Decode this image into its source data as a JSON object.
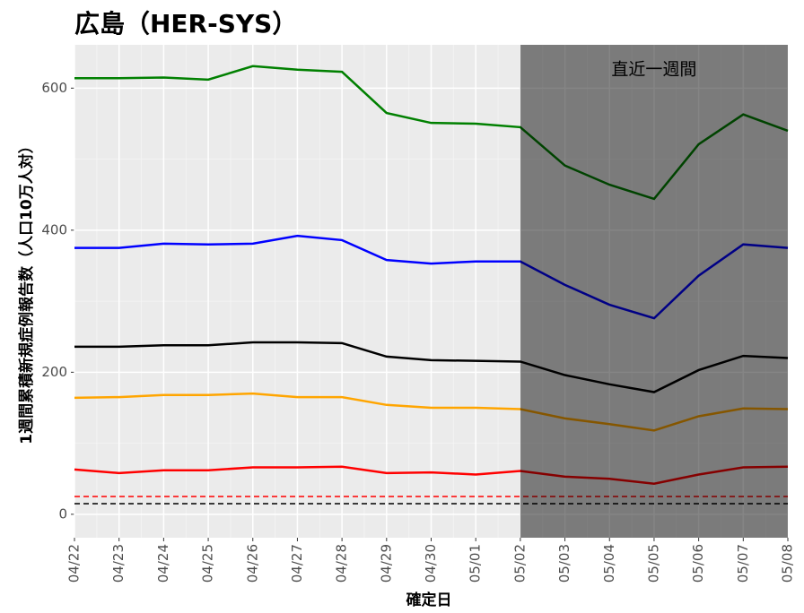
{
  "chart_data": {
    "type": "line",
    "title": "広島（HER-SYS）",
    "xlabel": "確定日",
    "ylabel": "1週間累積新規症例報告数（人口10万人対）",
    "annotation": "直近一週間",
    "shade_range": [
      "05/02",
      "05/08"
    ],
    "categories": [
      "04/22",
      "04/23",
      "04/24",
      "04/25",
      "04/26",
      "04/27",
      "04/28",
      "04/29",
      "04/30",
      "05/01",
      "05/02",
      "05/03",
      "05/04",
      "05/05",
      "05/06",
      "05/07",
      "05/08"
    ],
    "series": [
      {
        "color": "#008000",
        "values": [
          614,
          614,
          615,
          612,
          631,
          626,
          623,
          565,
          551,
          550,
          545,
          491,
          464,
          444,
          521,
          563,
          540
        ]
      },
      {
        "color": "#0000ff",
        "values": [
          375,
          375,
          381,
          380,
          381,
          392,
          386,
          358,
          353,
          356,
          356,
          323,
          295,
          276,
          336,
          380,
          375
        ]
      },
      {
        "color": "#000000",
        "values": [
          236,
          236,
          238,
          238,
          242,
          242,
          241,
          222,
          217,
          216,
          215,
          196,
          183,
          172,
          203,
          223,
          220
        ]
      },
      {
        "color": "#ffa500",
        "values": [
          164,
          165,
          168,
          168,
          170,
          165,
          165,
          154,
          150,
          150,
          148,
          135,
          127,
          118,
          138,
          149,
          148
        ]
      },
      {
        "color": "#ff0000",
        "values": [
          63,
          58,
          62,
          62,
          66,
          66,
          67,
          58,
          59,
          56,
          61,
          53,
          50,
          43,
          56,
          66,
          67
        ]
      }
    ],
    "hlines": [
      {
        "value": 25,
        "color": "#ff0000"
      },
      {
        "value": 15,
        "color": "#000000"
      }
    ],
    "ylim": [
      -33,
      661
    ],
    "yticks": [
      0,
      200,
      400,
      600
    ],
    "grid": true
  }
}
